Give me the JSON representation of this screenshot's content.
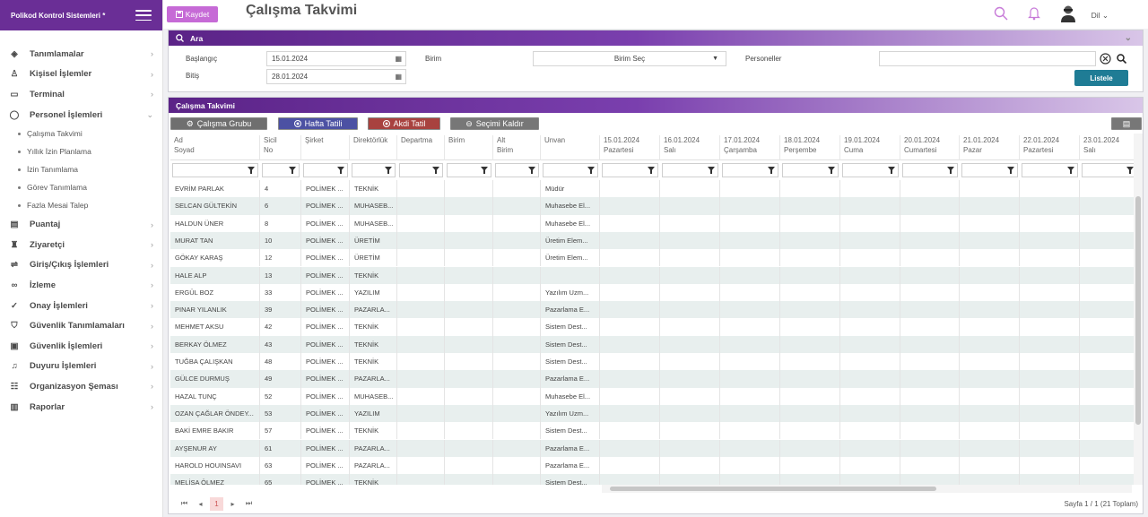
{
  "app": {
    "brand": "Polikod Kontrol Sistemleri *"
  },
  "header": {
    "save_label": "Kaydet",
    "title": "Çalışma Takvimi",
    "lang": "Dil"
  },
  "sidebar": {
    "items": [
      {
        "label": "Tanımlamalar",
        "icon": "layers-icon"
      },
      {
        "label": "Kişisel İşlemler",
        "icon": "user-icon"
      },
      {
        "label": "Terminal",
        "icon": "monitor-icon"
      },
      {
        "label": "Personel İşlemleri",
        "icon": "person-icon",
        "expanded": true
      },
      {
        "label": "Puantaj",
        "icon": "document-icon"
      },
      {
        "label": "Ziyaretçi",
        "icon": "visitor-icon"
      },
      {
        "label": "Giriş/Çıkış İşlemleri",
        "icon": "entry-icon"
      },
      {
        "label": "İzleme",
        "icon": "infinity-icon"
      },
      {
        "label": "Onay İşlemleri",
        "icon": "check-circle-icon"
      },
      {
        "label": "Güvenlik Tanımlamaları",
        "icon": "shield-icon"
      },
      {
        "label": "Güvenlik İşlemleri",
        "icon": "shield-lock-icon"
      },
      {
        "label": "Duyuru İşlemleri",
        "icon": "bell-icon"
      },
      {
        "label": "Organizasyon Şeması",
        "icon": "org-chart-icon"
      },
      {
        "label": "Raporlar",
        "icon": "bar-chart-icon"
      }
    ],
    "subitems": [
      "Çalışma Takvimi",
      "Yıllık İzin Planlama",
      "İzin Tanımlama",
      "Görev Tanımlama",
      "Fazla Mesai Talep"
    ]
  },
  "search": {
    "title": "Ara",
    "start_label": "Başlangıç",
    "start_value": "15.01.2024",
    "end_label": "Bitiş",
    "end_value": "28.01.2024",
    "unit_label": "Birim",
    "unit_value": "Birim Seç",
    "staff_label": "Personeller",
    "staff_value": "",
    "list_button": "Listele"
  },
  "calendar": {
    "title": "Çalışma Takvimi",
    "btn_group": "Çalışma Grubu",
    "btn_weekend": "Hafta Tatili",
    "btn_contract": "Akdi Tatil",
    "btn_clear": "Seçimi Kaldır",
    "columns": [
      [
        "Ad",
        "Soyad"
      ],
      [
        "Sicil",
        "No"
      ],
      [
        "",
        "Şirket"
      ],
      [
        "",
        "Direktörlük"
      ],
      [
        "",
        "Departma"
      ],
      [
        "",
        "Birim"
      ],
      [
        "Alt",
        "Birim"
      ],
      [
        "",
        "Unvan"
      ],
      [
        "15.01.2024",
        "Pazartesi"
      ],
      [
        "16.01.2024",
        "Salı"
      ],
      [
        "17.01.2024",
        "Çarşamba"
      ],
      [
        "18.01.2024",
        "Perşembe"
      ],
      [
        "19.01.2024",
        "Cuma"
      ],
      [
        "20.01.2024",
        "Cumartesi"
      ],
      [
        "21.01.2024",
        "Pazar"
      ],
      [
        "22.01.2024",
        "Pazartesi"
      ],
      [
        "23.01.2024",
        "Salı"
      ]
    ],
    "rows": [
      [
        "EVRİM PARLAK",
        "4",
        "POLİMEK ...",
        "TEKNİK",
        "Müdür"
      ],
      [
        "SELCAN GÜLTEKİN",
        "6",
        "POLİMEK ...",
        "MUHASEB...",
        "Muhasebe El..."
      ],
      [
        "HALDUN ÜNER",
        "8",
        "POLİMEK ...",
        "MUHASEB...",
        "Muhasebe El..."
      ],
      [
        "MURAT TAN",
        "10",
        "POLİMEK ...",
        "ÜRETİM",
        "Üretim Elem..."
      ],
      [
        "GÖKAY KARAŞ",
        "12",
        "POLİMEK ...",
        "ÜRETİM",
        "Üretim Elem..."
      ],
      [
        "HALE ALP",
        "13",
        "POLİMEK ...",
        "TEKNİK",
        ""
      ],
      [
        "ERGÜL BOZ",
        "33",
        "POLİMEK ...",
        "YAZILIM",
        "Yazılım Uzm..."
      ],
      [
        "PINAR YILANLIK",
        "39",
        "POLİMEK ...",
        "PAZARLA...",
        "Pazarlama E..."
      ],
      [
        "MEHMET AKSU",
        "42",
        "POLİMEK ...",
        "TEKNİK",
        "Sistem Dest..."
      ],
      [
        "BERKAY ÖLMEZ",
        "43",
        "POLİMEK ...",
        "TEKNİK",
        "Sistem Dest..."
      ],
      [
        "TUĞBA ÇALIŞKAN",
        "48",
        "POLİMEK ...",
        "TEKNİK",
        "Sistem Dest..."
      ],
      [
        "GÜLCE DURMUŞ",
        "49",
        "POLİMEK ...",
        "PAZARLA...",
        "Pazarlama E..."
      ],
      [
        "HAZAL TUNÇ",
        "52",
        "POLİMEK ...",
        "MUHASEB...",
        "Muhasebe El..."
      ],
      [
        "OZAN ÇAĞLAR ÖNDEY...",
        "53",
        "POLİMEK ...",
        "YAZILIM",
        "Yazılım Uzm..."
      ],
      [
        "BAKİ EMRE BAKIR",
        "57",
        "POLİMEK ...",
        "TEKNİK",
        "Sistem Dest..."
      ],
      [
        "AYŞENUR AY",
        "61",
        "POLİMEK ...",
        "PAZARLA...",
        "Pazarlama E..."
      ],
      [
        "HAROLD HOUINSAVI",
        "63",
        "POLİMEK ...",
        "PAZARLA...",
        "Pazarlama E..."
      ],
      [
        "MELİSA ÖLMEZ",
        "65",
        "POLİMEK ...",
        "TEKNİK",
        "Sistem Dest..."
      ]
    ],
    "pager": {
      "current": "1",
      "info": "Sayfa 1 / 1 (21 Toplam)"
    }
  },
  "colors": {
    "brand": "#6a2e96",
    "accent": "#c66ad6",
    "list": "#1f7c95",
    "row_alt": "#e8efee"
  }
}
